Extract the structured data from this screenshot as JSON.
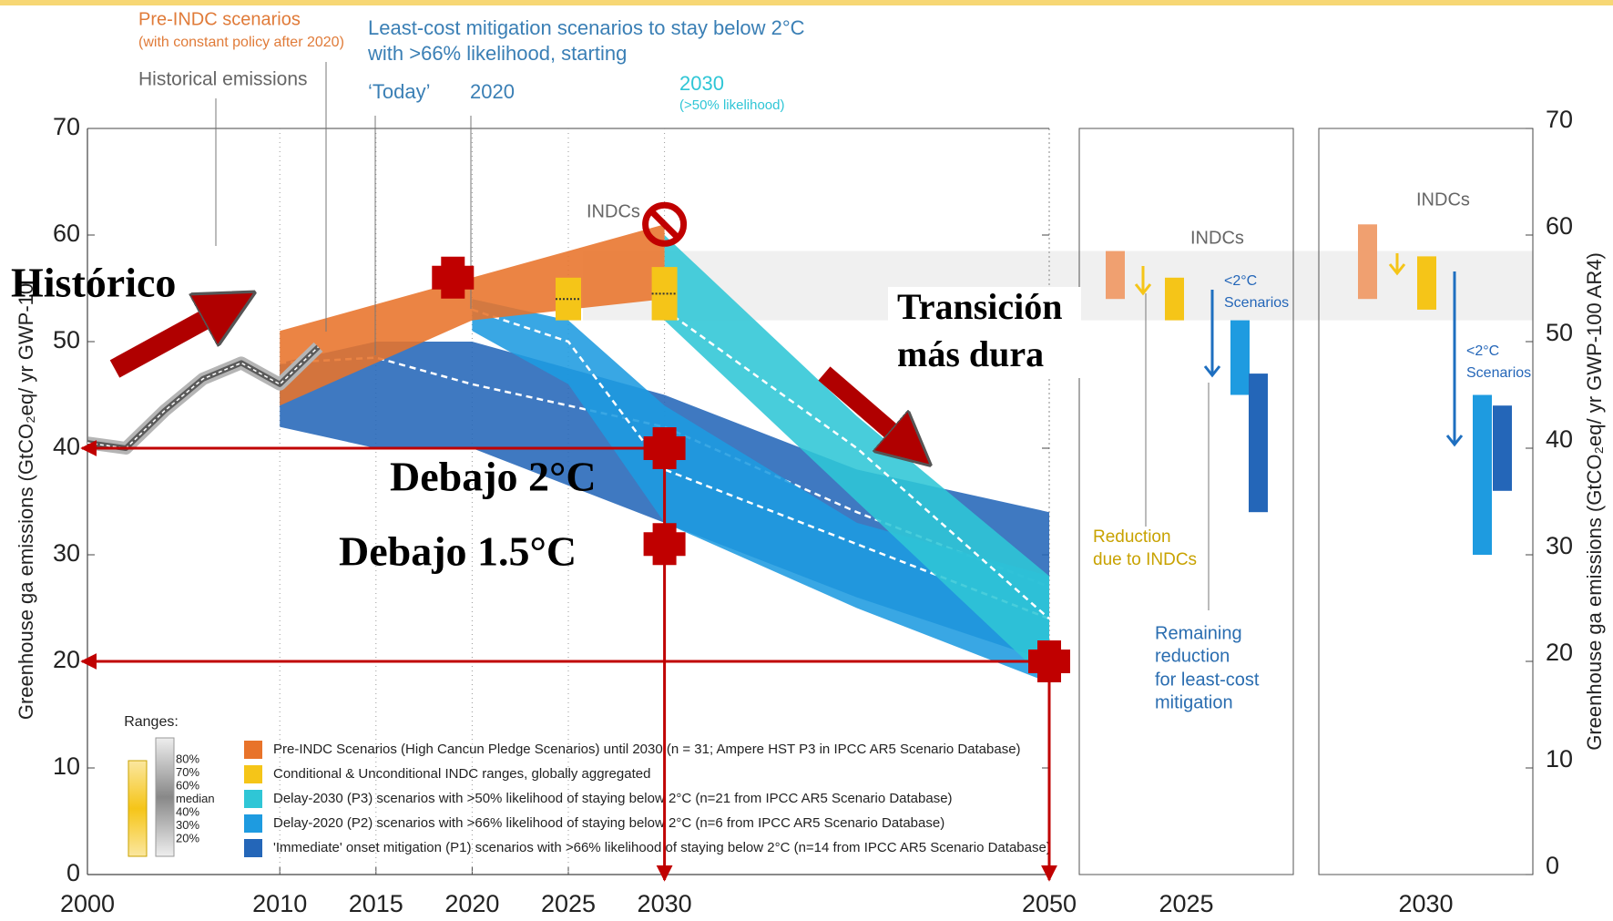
{
  "chart_data": {
    "type": "line",
    "ylabel": "Greenhouse ga emissions (GtCO₂eq/ yr GWP-10",
    "y2label": "Greenhouse ga emissions (GtCO₂eq/ yr GWP-100 AR4)",
    "xlim": [
      2000,
      2050
    ],
    "xticks": [
      2000,
      2010,
      2015,
      2020,
      2025,
      2030,
      2050
    ],
    "ylim": [
      0,
      70
    ],
    "yticks": [
      0,
      10,
      20,
      30,
      40,
      50,
      60,
      70
    ],
    "y2lim": [
      0,
      70
    ],
    "y2ticks": [
      0,
      10,
      20,
      30,
      40,
      50,
      60,
      70
    ],
    "historical": {
      "name": "Historical emissions",
      "color": "#5a5a5a",
      "x": [
        2000,
        2002,
        2004,
        2006,
        2008,
        2010,
        2012
      ],
      "values": [
        40.5,
        40,
        43.5,
        46.5,
        48,
        46,
        49.5
      ]
    },
    "ranges": [
      {
        "name": "Pre-INDC Scenarios (High Cancun Pledge Scenarios) until 2030 (n = 31; Ampere HST P3 in IPCC AR5 Scenario Database)",
        "color": "#e8732a",
        "x": [
          2010,
          2020,
          2030
        ],
        "low": [
          44,
          52,
          54
        ],
        "high": [
          51,
          56,
          61
        ]
      },
      {
        "name": "Conditional & Unconditional INDC ranges, globally aggregated",
        "color": "#f5c518",
        "style": "bars",
        "x": [
          2025,
          2030
        ],
        "low": [
          52,
          52
        ],
        "high": [
          56,
          57
        ]
      },
      {
        "name": "Delay-2030 (P3) scenarios with >50% likelihood of staying below 2°C (n=21 from IPCC AR5 Scenario Database)",
        "color": "#2fc6d6",
        "x": [
          2030,
          2040,
          2050
        ],
        "low": [
          52,
          35,
          18
        ],
        "high": [
          60,
          43,
          28
        ],
        "median": [
          53,
          40,
          24
        ]
      },
      {
        "name": "Delay-2020 (P2) scenarios with >66% likelihood of staying below 2°C (n=6 from IPCC AR5 Scenario Database)",
        "color": "#1e9be0",
        "x": [
          2020,
          2025,
          2030,
          2040,
          2050
        ],
        "low": [
          51,
          46,
          33,
          25,
          18
        ],
        "high": [
          54,
          52,
          44,
          33,
          28
        ],
        "median": [
          53,
          50,
          38,
          31,
          24
        ]
      },
      {
        "name": "'Immediate' onset mitigation (P1) scenarios with >66% likelihood of staying below 2°C (n=14 from IPCC AR5 Scenario Database)",
        "color": "#2466b8",
        "x": [
          2010,
          2015,
          2020,
          2030,
          2040,
          2050
        ],
        "low": [
          42,
          40,
          40,
          33,
          26,
          20
        ],
        "high": [
          48,
          50,
          50,
          45,
          38,
          34
        ],
        "median": [
          48,
          48.5,
          46,
          42,
          34,
          27
        ]
      }
    ],
    "panels": [
      {
        "label": "2025",
        "bars": [
          {
            "color": "#f0a070",
            "low": 54,
            "high": 58.5
          },
          {
            "color": "#f5c518",
            "low": 52,
            "high": 56
          },
          {
            "color": "#1e9be0",
            "low": 45,
            "high": 52
          },
          {
            "color": "#2466b8",
            "low": 34,
            "high": 47
          }
        ]
      },
      {
        "label": "2030",
        "bars": [
          {
            "color": "#f0a070",
            "low": 54,
            "high": 61
          },
          {
            "color": "#f5c518",
            "low": 53,
            "high": 58
          },
          {
            "color": "#1e9be0",
            "low": 30,
            "high": 45
          },
          {
            "color": "#2466b8",
            "low": 36,
            "high": 44
          }
        ]
      }
    ],
    "annotations": [
      "Pre-INDC scenarios",
      "(with constant policy after 2020)",
      "Historical emissions",
      "Least-cost mitigation scenarios to stay below 2°C",
      "with >66% likelihood, starting",
      "‘Today’",
      "2020",
      "2030",
      "(>50% likelihood)",
      "INDCs",
      "INDCs",
      "INDCs",
      "<2°C",
      "Scenarios",
      "<2°C",
      "Scenarios",
      "Reduction",
      "due to INDCs",
      "Remaining",
      "reduction",
      "for least-cost",
      "mitigation",
      "Ranges:"
    ],
    "range_key": [
      "80%",
      "70%",
      "60%",
      "median",
      "40%",
      "30%",
      "20%"
    ],
    "overlay_labels": [
      "Histórico",
      "Transición",
      "más dura",
      "Debajo 2°C",
      "Debajo 1.5°C"
    ],
    "marker_color": "#c00000",
    "markers": [
      {
        "x": 2019,
        "y": 56
      },
      {
        "x": 2030,
        "y": 40
      },
      {
        "x": 2030,
        "y": 31
      },
      {
        "x": 2050,
        "y": 20
      }
    ],
    "stop_marker": {
      "x": 2030,
      "y": 61
    },
    "guides": [
      {
        "x": 2030,
        "y": 40
      },
      {
        "x": 2050,
        "y": 20
      }
    ]
  }
}
